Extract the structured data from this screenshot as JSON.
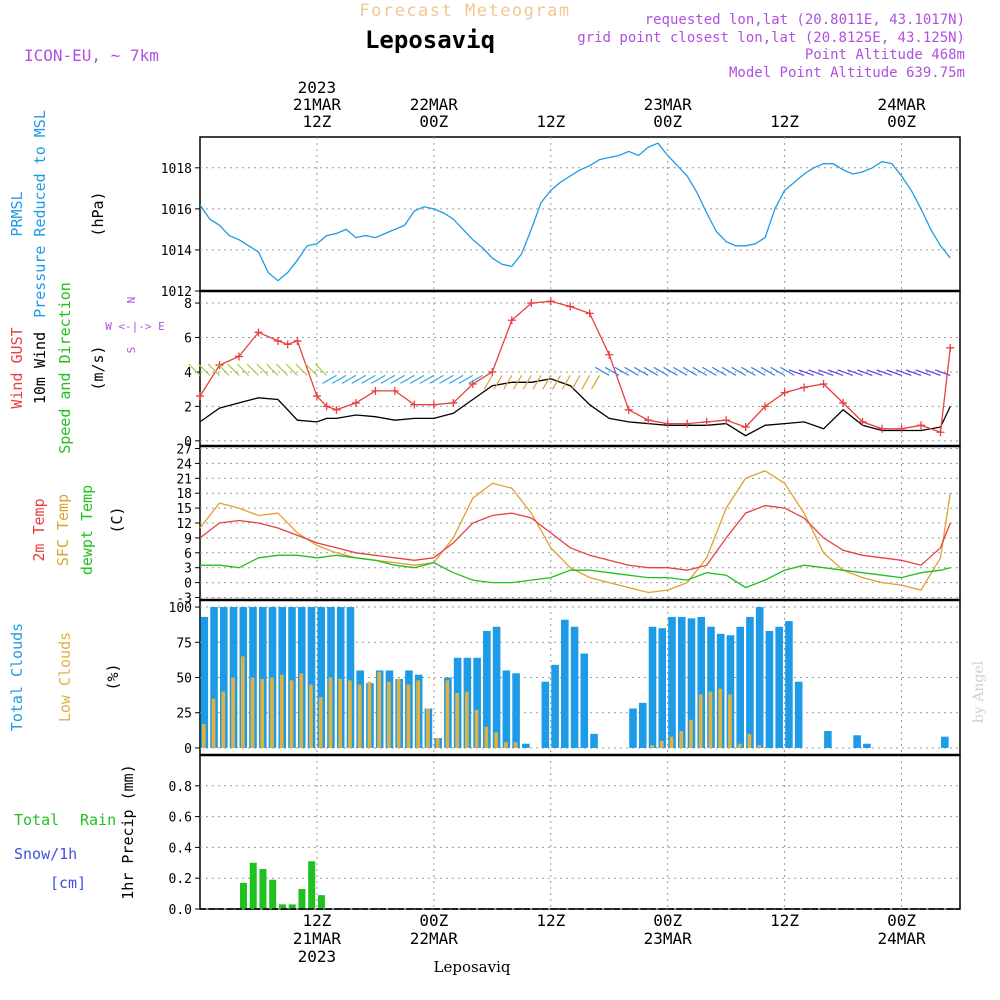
{
  "header": {
    "product": "Forecast Meteogram",
    "station": "Leposaviq",
    "model": "ICON-EU, ~ 7km",
    "requested": "requested lon,lat (20.8011E, 43.1017N)",
    "gridpoint": "grid point closest lon,lat (20.8125E, 43.125N)",
    "point_alt": "Point Altitude 468m",
    "model_alt": "Model Point Altitude 639.75m",
    "watermark": "by Angel",
    "footer_station": "Leposaviq"
  },
  "time_axis": {
    "top_labels": [
      {
        "x": 12,
        "lines": [
          "2023",
          "21MAR",
          "12Z"
        ]
      },
      {
        "x": 24,
        "lines": [
          "22MAR",
          "00Z"
        ]
      },
      {
        "x": 36,
        "lines": [
          "12Z"
        ]
      },
      {
        "x": 48,
        "lines": [
          "23MAR",
          "00Z"
        ]
      },
      {
        "x": 60,
        "lines": [
          "12Z"
        ]
      },
      {
        "x": 72,
        "lines": [
          "24MAR",
          "00Z"
        ]
      }
    ],
    "bottom_labels": [
      {
        "x": 12,
        "lines": [
          "12Z",
          "21MAR",
          "2023"
        ]
      },
      {
        "x": 24,
        "lines": [
          "00Z",
          "22MAR"
        ]
      },
      {
        "x": 36,
        "lines": [
          "12Z"
        ]
      },
      {
        "x": 48,
        "lines": [
          "00Z",
          "23MAR"
        ]
      },
      {
        "x": 60,
        "lines": [
          "12Z"
        ]
      },
      {
        "x": 72,
        "lines": [
          "00Z",
          "24MAR"
        ]
      }
    ]
  },
  "panel_labels": {
    "pressure": [
      "PRMSL",
      "Pressure Reduced to MSL"
    ],
    "pressure_unit": "(hPa)",
    "wind": [
      "Wind GUST",
      "10m Wind",
      "Speed and Direction"
    ],
    "wind_unit": "(m/s)",
    "compass": [
      "N",
      "W <-|-> E",
      "S"
    ],
    "temp": [
      "2m Temp",
      "SFC Temp",
      "dewpt Temp"
    ],
    "temp_unit": "(C)",
    "cloud": [
      "Total Clouds",
      "Low Clouds"
    ],
    "cloud_unit": "(%)",
    "precip": [
      "Total",
      "Rain",
      "Snow/1h",
      "[cm]"
    ],
    "precip_unit": "1hr Precip (mm)"
  },
  "colors": {
    "pressure": "#1e9be6",
    "gust": "#e84040",
    "wind": "#000000",
    "t2m": "#e84040",
    "tsfc": "#e0a030",
    "dewpt": "#20c020",
    "total_cloud": "#1e9be6",
    "low_cloud": "#e0b040",
    "precip": "#20c020",
    "snow": "#4050e0",
    "title_product": "#f0c890",
    "info": "#b050e0"
  },
  "chart_data": [
    {
      "type": "line",
      "name": "pressure",
      "ylim": [
        1012,
        1019.5
      ],
      "yticks": [
        1012,
        1014,
        1016,
        1018
      ],
      "x": [
        0,
        1,
        2,
        3,
        4,
        5,
        6,
        7,
        8,
        9,
        10,
        11,
        12,
        13,
        14,
        15,
        16,
        17,
        18,
        19,
        20,
        21,
        22,
        23,
        24,
        25,
        26,
        27,
        28,
        29,
        30,
        31,
        32,
        33,
        34,
        35,
        36,
        37,
        38,
        39,
        40,
        41,
        42,
        43,
        44,
        45,
        46,
        47,
        48,
        49,
        50,
        51,
        52,
        53,
        54,
        55,
        56,
        57,
        58,
        59,
        60,
        61,
        62,
        63,
        64,
        65,
        66,
        67,
        68,
        69,
        70,
        71,
        72,
        73,
        74,
        75,
        76,
        77
      ],
      "values": [
        1016.2,
        1015.5,
        1015.2,
        1014.7,
        1014.5,
        1014.2,
        1013.9,
        1012.9,
        1012.5,
        1012.9,
        1013.5,
        1014.2,
        1014.3,
        1014.7,
        1014.8,
        1015.0,
        1014.6,
        1014.7,
        1014.6,
        1014.8,
        1015.0,
        1015.2,
        1015.9,
        1016.1,
        1016.0,
        1015.8,
        1015.5,
        1015.0,
        1014.5,
        1014.1,
        1013.6,
        1013.3,
        1013.2,
        1013.8,
        1015.0,
        1016.3,
        1016.9,
        1017.3,
        1017.6,
        1017.9,
        1018.1,
        1018.4,
        1018.5,
        1018.6,
        1018.8,
        1018.6,
        1019.0,
        1019.2,
        1018.6,
        1018.1,
        1017.6,
        1016.8,
        1015.8,
        1014.9,
        1014.4,
        1014.2,
        1014.2,
        1014.3,
        1014.6,
        1016.0,
        1016.9,
        1017.3,
        1017.7,
        1018.0,
        1018.2,
        1018.2,
        1017.9,
        1017.7,
        1017.8,
        1018.0,
        1018.3,
        1018.2,
        1017.6,
        1016.9,
        1016.0,
        1015.0,
        1014.2,
        1013.6
      ]
    },
    {
      "type": "line",
      "name": "wind",
      "ylim": [
        -0.3,
        8.7
      ],
      "yticks": [
        0,
        2,
        4,
        6,
        8
      ],
      "x": [
        0,
        2,
        4,
        6,
        8,
        9,
        10,
        12,
        13,
        14,
        16,
        18,
        20,
        22,
        24,
        26,
        28,
        30,
        32,
        34,
        36,
        38,
        40,
        42,
        44,
        46,
        48,
        50,
        52,
        54,
        56,
        58,
        60,
        62,
        64,
        66,
        68,
        70,
        72,
        74,
        76,
        77
      ],
      "gust": [
        2.6,
        4.4,
        4.9,
        6.3,
        5.8,
        5.6,
        5.8,
        2.6,
        2.0,
        1.8,
        2.2,
        2.9,
        2.9,
        2.1,
        2.1,
        2.2,
        3.3,
        4.0,
        7.0,
        8.0,
        8.1,
        7.8,
        7.4,
        5.0,
        1.8,
        1.2,
        1.0,
        1.0,
        1.1,
        1.2,
        0.8,
        2.0,
        2.8,
        3.1,
        3.3,
        2.2,
        1.1,
        0.7,
        0.7,
        0.9,
        0.5,
        5.4
      ],
      "speed": [
        1.1,
        1.9,
        2.2,
        2.5,
        2.4,
        1.8,
        1.2,
        1.1,
        1.3,
        1.3,
        1.5,
        1.4,
        1.2,
        1.3,
        1.3,
        1.6,
        2.4,
        3.2,
        3.4,
        3.4,
        3.6,
        3.2,
        2.1,
        1.3,
        1.1,
        1.0,
        0.9,
        0.9,
        0.9,
        1.0,
        0.3,
        0.9,
        1.0,
        1.1,
        0.7,
        1.8,
        0.9,
        0.6,
        0.6,
        0.6,
        0.8,
        2.0
      ],
      "barb_dir_note": "arrows show direction"
    },
    {
      "type": "line",
      "name": "temperature",
      "ylim": [
        -3.5,
        27.5
      ],
      "yticks": [
        -3,
        0,
        3,
        6,
        9,
        12,
        15,
        18,
        21,
        24,
        27
      ],
      "x": [
        0,
        2,
        4,
        6,
        8,
        10,
        12,
        14,
        16,
        18,
        20,
        22,
        24,
        26,
        28,
        30,
        32,
        34,
        36,
        38,
        40,
        42,
        44,
        46,
        48,
        50,
        52,
        54,
        56,
        58,
        60,
        62,
        64,
        66,
        68,
        70,
        72,
        74,
        76,
        77
      ],
      "t2m": [
        9.0,
        12.0,
        12.5,
        12.0,
        11.0,
        9.5,
        8.0,
        7.0,
        6.0,
        5.5,
        5.0,
        4.5,
        5.0,
        8.0,
        12.0,
        13.5,
        14.0,
        13.0,
        10.0,
        7.0,
        5.5,
        4.5,
        3.5,
        3.0,
        3.0,
        2.5,
        3.5,
        9.0,
        14.0,
        15.5,
        15.0,
        13.0,
        9.0,
        6.5,
        5.5,
        5.0,
        4.5,
        3.5,
        7.0,
        12.0
      ],
      "tsfc": [
        11.0,
        16.0,
        15.0,
        13.5,
        14.0,
        10.0,
        7.5,
        6.0,
        5.0,
        4.5,
        4.0,
        3.5,
        4.0,
        9.0,
        17.0,
        20.0,
        19.0,
        14.0,
        7.0,
        3.0,
        1.0,
        0.0,
        -1.0,
        -2.0,
        -1.5,
        0.0,
        5.0,
        15.0,
        21.0,
        22.5,
        20.0,
        14.0,
        6.0,
        2.5,
        1.0,
        0.0,
        -0.5,
        -1.5,
        5.0,
        18.0
      ],
      "dewpt": [
        3.5,
        3.5,
        3.0,
        5.0,
        5.5,
        5.5,
        5.0,
        5.5,
        5.0,
        4.5,
        3.5,
        3.0,
        4.0,
        2.0,
        0.5,
        0.0,
        0.0,
        0.5,
        1.0,
        2.5,
        2.5,
        2.0,
        1.5,
        1.0,
        1.0,
        0.5,
        2.0,
        1.5,
        -1.0,
        0.5,
        2.5,
        3.5,
        3.0,
        2.5,
        2.0,
        1.5,
        1.0,
        2.0,
        2.5,
        3.0
      ]
    },
    {
      "type": "bar",
      "name": "clouds",
      "ylim": [
        -5,
        105
      ],
      "yticks": [
        0,
        25,
        50,
        75,
        100
      ],
      "x": [
        0,
        1,
        2,
        3,
        4,
        5,
        6,
        7,
        8,
        9,
        10,
        11,
        12,
        13,
        14,
        15,
        16,
        17,
        18,
        19,
        20,
        21,
        22,
        23,
        24,
        25,
        26,
        27,
        28,
        29,
        30,
        31,
        32,
        33,
        34,
        35,
        36,
        37,
        38,
        39,
        40,
        41,
        42,
        43,
        44,
        45,
        46,
        47,
        48,
        49,
        50,
        51,
        52,
        53,
        54,
        55,
        56,
        57,
        58,
        59,
        60,
        61,
        62,
        63,
        64,
        65,
        66,
        67,
        68,
        69,
        70,
        71,
        72,
        73,
        74,
        75,
        76
      ],
      "total": [
        93,
        100,
        100,
        100,
        100,
        100,
        100,
        100,
        100,
        100,
        100,
        100,
        100,
        100,
        100,
        100,
        55,
        46,
        55,
        55,
        49,
        55,
        52,
        28,
        7,
        50,
        64,
        64,
        64,
        83,
        86,
        55,
        53,
        3,
        0,
        47,
        59,
        91,
        86,
        67,
        10,
        0,
        0,
        0,
        28,
        32,
        86,
        85,
        93,
        93,
        92,
        93,
        86,
        81,
        80,
        86,
        93,
        100,
        83,
        86,
        90,
        47,
        0,
        0,
        12,
        0,
        0,
        9,
        3,
        0,
        0,
        0,
        0,
        0,
        0,
        0,
        8
      ],
      "low": [
        17,
        35,
        40,
        50,
        65,
        50,
        49,
        50,
        52,
        48,
        53,
        45,
        36,
        50,
        49,
        48,
        45,
        47,
        54,
        47,
        49,
        45,
        48,
        28,
        7,
        48,
        39,
        40,
        27,
        15,
        11,
        4,
        4,
        0,
        0,
        0,
        0,
        0,
        0,
        0,
        0,
        0,
        0,
        0,
        0,
        0,
        2,
        5,
        8,
        12,
        20,
        38,
        40,
        42,
        38,
        3,
        10,
        2,
        0,
        0,
        0,
        0,
        0,
        0,
        0,
        0,
        0,
        0,
        0,
        0,
        0,
        0,
        0,
        0,
        0,
        0,
        0
      ]
    },
    {
      "type": "bar",
      "name": "precipitation",
      "ylim": [
        0,
        1.0
      ],
      "yticks": [
        0,
        0.2,
        0.4,
        0.6,
        0.8
      ],
      "x": [
        4,
        5,
        6,
        7,
        8,
        9,
        10,
        11,
        12,
        13,
        14
      ],
      "values": [
        0.17,
        0.3,
        0.26,
        0.19,
        0.03,
        0.03,
        0.13,
        0.31,
        0.09,
        0,
        0
      ]
    }
  ]
}
